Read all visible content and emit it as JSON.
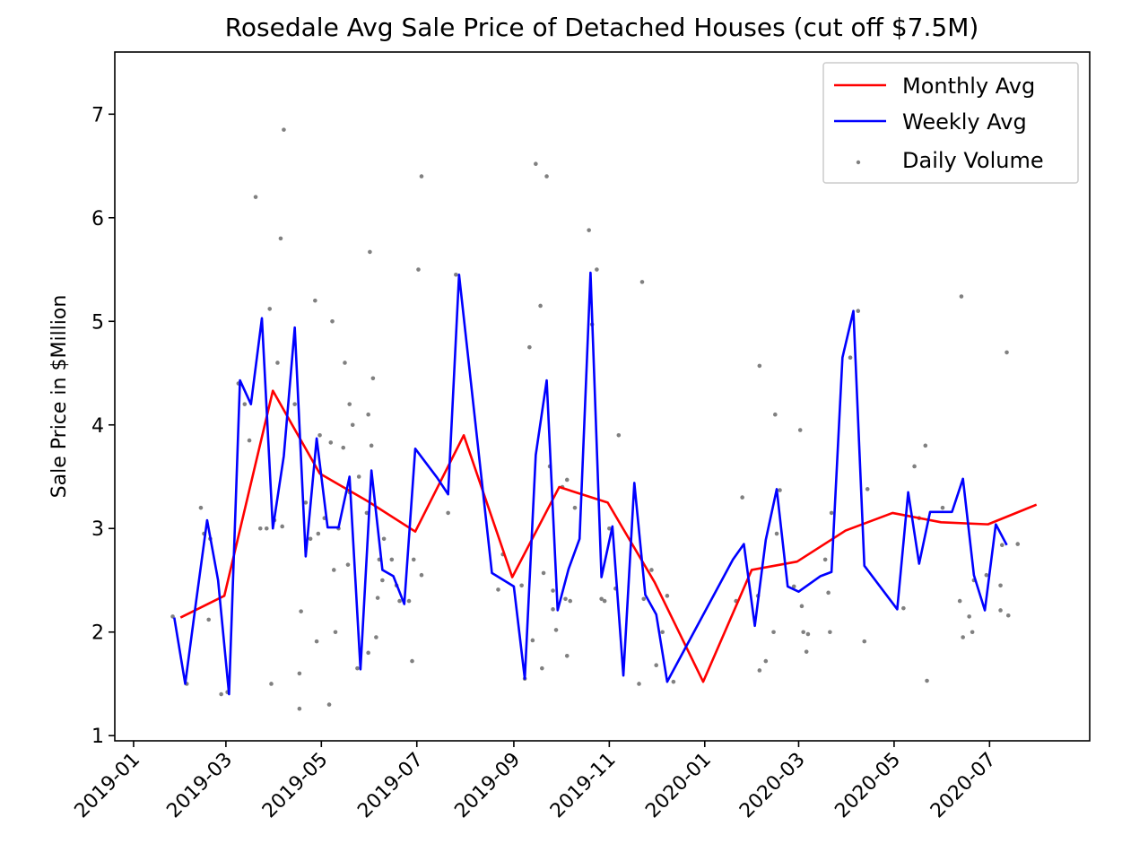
{
  "chart_data": {
    "type": "line",
    "title": "Rosedale Avg Sale Price of Detached Houses (cut off $7.5M)",
    "xlabel": "",
    "ylabel": "Sale Price in $Million",
    "ylim": [
      0.95,
      7.6
    ],
    "xlim": [
      "2018-12-20",
      "2020-09-03"
    ],
    "x_ticks": [
      "2019-01",
      "2019-03",
      "2019-05",
      "2019-07",
      "2019-09",
      "2019-11",
      "2020-01",
      "2020-03",
      "2020-05",
      "2020-07"
    ],
    "y_ticks": [
      1,
      2,
      3,
      4,
      5,
      6,
      7
    ],
    "grid": false,
    "legend_position": "top-right",
    "series": [
      {
        "name": "Monthly Avg",
        "color": "#ff0000",
        "style": "line",
        "x": [
          "2019-01-31",
          "2019-02-28",
          "2019-03-31",
          "2019-04-30",
          "2019-05-31",
          "2019-06-30",
          "2019-07-31",
          "2019-08-31",
          "2019-09-30",
          "2019-10-31",
          "2019-11-30",
          "2019-12-31",
          "2020-01-31",
          "2020-02-29",
          "2020-03-31",
          "2020-04-30",
          "2020-05-31",
          "2020-06-30",
          "2020-07-31"
        ],
        "y": [
          2.14,
          2.35,
          4.33,
          3.53,
          3.26,
          2.97,
          3.9,
          2.53,
          3.4,
          3.25,
          2.48,
          1.52,
          2.6,
          2.68,
          2.98,
          3.15,
          3.06,
          3.04,
          3.23
        ]
      },
      {
        "name": "Weekly Avg",
        "color": "#0000ff",
        "style": "line",
        "x": [
          "2019-01-27",
          "2019-02-03",
          "2019-02-10",
          "2019-02-17",
          "2019-02-24",
          "2019-03-03",
          "2019-03-10",
          "2019-03-17",
          "2019-03-24",
          "2019-03-31",
          "2019-04-07",
          "2019-04-14",
          "2019-04-21",
          "2019-04-28",
          "2019-05-05",
          "2019-05-12",
          "2019-05-19",
          "2019-05-26",
          "2019-06-02",
          "2019-06-09",
          "2019-06-16",
          "2019-06-23",
          "2019-06-30",
          "2019-07-14",
          "2019-07-21",
          "2019-07-28",
          "2019-08-18",
          "2019-09-01",
          "2019-09-08",
          "2019-09-15",
          "2019-09-22",
          "2019-09-29",
          "2019-10-06",
          "2019-10-13",
          "2019-10-20",
          "2019-10-27",
          "2019-11-03",
          "2019-11-10",
          "2019-11-17",
          "2019-11-24",
          "2019-12-01",
          "2019-12-08",
          "2020-01-19",
          "2020-01-26",
          "2020-02-02",
          "2020-02-09",
          "2020-02-16",
          "2020-02-23",
          "2020-03-01",
          "2020-03-15",
          "2020-03-22",
          "2020-03-29",
          "2020-04-05",
          "2020-04-12",
          "2020-05-03",
          "2020-05-10",
          "2020-05-17",
          "2020-05-24",
          "2020-06-07",
          "2020-06-14",
          "2020-06-21",
          "2020-06-28",
          "2020-07-05",
          "2020-07-12"
        ],
        "y": [
          2.14,
          1.5,
          2.3,
          3.08,
          2.5,
          1.4,
          4.43,
          4.2,
          5.03,
          3.0,
          3.7,
          4.94,
          2.73,
          3.87,
          3.01,
          3.01,
          3.5,
          1.64,
          3.56,
          2.6,
          2.54,
          2.27,
          3.77,
          3.49,
          3.33,
          5.45,
          2.57,
          2.44,
          1.55,
          3.71,
          4.43,
          2.21,
          2.61,
          2.9,
          5.47,
          2.53,
          3.02,
          1.58,
          3.44,
          2.36,
          2.17,
          1.52,
          2.7,
          2.85,
          2.06,
          2.89,
          3.38,
          2.44,
          2.39,
          2.54,
          2.58,
          4.65,
          5.1,
          2.64,
          2.22,
          3.35,
          2.66,
          3.16,
          3.16,
          3.48,
          2.55,
          2.21,
          3.04,
          2.84
        ]
      },
      {
        "name": "Daily Volume",
        "color": "#808080",
        "style": "scatter",
        "points": [
          [
            "2019-01-26",
            2.15
          ],
          [
            "2019-02-04",
            1.5
          ],
          [
            "2019-02-13",
            3.2
          ],
          [
            "2019-02-15",
            2.95
          ],
          [
            "2019-02-18",
            2.12
          ],
          [
            "2019-02-19",
            2.9
          ],
          [
            "2019-02-26",
            1.4
          ],
          [
            "2019-03-02",
            1.42
          ],
          [
            "2019-03-09",
            4.4
          ],
          [
            "2019-03-13",
            4.2
          ],
          [
            "2019-03-16",
            3.85
          ],
          [
            "2019-03-20",
            6.2
          ],
          [
            "2019-03-23",
            3.0
          ],
          [
            "2019-03-27",
            3.0
          ],
          [
            "2019-03-29",
            5.12
          ],
          [
            "2019-03-30",
            1.5
          ],
          [
            "2019-04-01",
            3.08
          ],
          [
            "2019-04-03",
            4.6
          ],
          [
            "2019-04-05",
            5.8
          ],
          [
            "2019-04-06",
            3.02
          ],
          [
            "2019-04-07",
            6.85
          ],
          [
            "2019-04-14",
            4.2
          ],
          [
            "2019-04-17",
            1.26
          ],
          [
            "2019-04-17",
            1.6
          ],
          [
            "2019-04-18",
            2.2
          ],
          [
            "2019-04-21",
            3.25
          ],
          [
            "2019-04-24",
            2.9
          ],
          [
            "2019-04-27",
            5.2
          ],
          [
            "2019-04-28",
            1.91
          ],
          [
            "2019-04-29",
            2.95
          ],
          [
            "2019-04-30",
            3.9
          ],
          [
            "2019-05-03",
            3.1
          ],
          [
            "2019-05-06",
            1.3
          ],
          [
            "2019-05-07",
            3.83
          ],
          [
            "2019-05-08",
            5.0
          ],
          [
            "2019-05-09",
            2.6
          ],
          [
            "2019-05-10",
            2.0
          ],
          [
            "2019-05-12",
            3.0
          ],
          [
            "2019-05-15",
            3.78
          ],
          [
            "2019-05-16",
            4.6
          ],
          [
            "2019-05-18",
            2.65
          ],
          [
            "2019-05-19",
            3.35
          ],
          [
            "2019-05-19",
            4.2
          ],
          [
            "2019-05-21",
            4.0
          ],
          [
            "2019-05-24",
            1.65
          ],
          [
            "2019-05-25",
            3.5
          ],
          [
            "2019-05-30",
            3.15
          ],
          [
            "2019-05-31",
            1.8
          ],
          [
            "2019-05-31",
            4.1
          ],
          [
            "2019-06-01",
            5.67
          ],
          [
            "2019-06-02",
            3.8
          ],
          [
            "2019-06-03",
            4.45
          ],
          [
            "2019-06-05",
            1.95
          ],
          [
            "2019-06-06",
            2.33
          ],
          [
            "2019-06-07",
            2.7
          ],
          [
            "2019-06-09",
            2.5
          ],
          [
            "2019-06-10",
            2.9
          ],
          [
            "2019-06-15",
            2.7
          ],
          [
            "2019-06-18",
            2.45
          ],
          [
            "2019-06-20",
            2.3
          ],
          [
            "2019-06-26",
            2.3
          ],
          [
            "2019-06-28",
            1.72
          ],
          [
            "2019-06-29",
            2.7
          ],
          [
            "2019-07-02",
            5.5
          ],
          [
            "2019-07-04",
            6.4
          ],
          [
            "2019-07-04",
            2.55
          ],
          [
            "2019-07-21",
            3.15
          ],
          [
            "2019-07-26",
            5.45
          ],
          [
            "2019-08-22",
            2.41
          ],
          [
            "2019-08-25",
            2.75
          ],
          [
            "2019-09-06",
            2.45
          ],
          [
            "2019-09-08",
            1.55
          ],
          [
            "2019-09-11",
            4.75
          ],
          [
            "2019-09-13",
            1.92
          ],
          [
            "2019-09-15",
            6.52
          ],
          [
            "2019-09-18",
            5.15
          ],
          [
            "2019-09-19",
            1.65
          ],
          [
            "2019-09-20",
            2.57
          ],
          [
            "2019-09-22",
            6.4
          ],
          [
            "2019-09-24",
            3.6
          ],
          [
            "2019-09-26",
            2.4
          ],
          [
            "2019-09-26",
            2.22
          ],
          [
            "2019-09-28",
            2.02
          ],
          [
            "2019-10-02",
            3.4
          ],
          [
            "2019-10-04",
            2.32
          ],
          [
            "2019-10-05",
            1.77
          ],
          [
            "2019-10-05",
            3.47
          ],
          [
            "2019-10-07",
            2.3
          ],
          [
            "2019-10-10",
            3.2
          ],
          [
            "2019-10-19",
            5.88
          ],
          [
            "2019-10-21",
            4.97
          ],
          [
            "2019-10-24",
            5.5
          ],
          [
            "2019-10-27",
            2.32
          ],
          [
            "2019-10-29",
            2.3
          ],
          [
            "2019-11-01",
            3.0
          ],
          [
            "2019-11-05",
            2.42
          ],
          [
            "2019-11-07",
            3.9
          ],
          [
            "2019-11-20",
            1.5
          ],
          [
            "2019-11-22",
            5.38
          ],
          [
            "2019-11-23",
            2.32
          ],
          [
            "2019-11-28",
            2.6
          ],
          [
            "2019-12-01",
            1.68
          ],
          [
            "2019-12-05",
            2.0
          ],
          [
            "2019-12-08",
            2.35
          ],
          [
            "2019-12-12",
            1.52
          ],
          [
            "2020-01-21",
            2.3
          ],
          [
            "2020-01-25",
            3.3
          ],
          [
            "2020-02-04",
            2.35
          ],
          [
            "2020-02-05",
            4.57
          ],
          [
            "2020-02-05",
            1.63
          ],
          [
            "2020-02-09",
            1.72
          ],
          [
            "2020-02-14",
            2.0
          ],
          [
            "2020-02-15",
            4.1
          ],
          [
            "2020-02-16",
            2.95
          ],
          [
            "2020-02-18",
            3.37
          ],
          [
            "2020-02-27",
            2.44
          ],
          [
            "2020-03-02",
            3.95
          ],
          [
            "2020-03-03",
            2.25
          ],
          [
            "2020-03-04",
            2.0
          ],
          [
            "2020-03-06",
            1.81
          ],
          [
            "2020-03-07",
            1.98
          ],
          [
            "2020-03-18",
            2.7
          ],
          [
            "2020-03-20",
            2.38
          ],
          [
            "2020-03-21",
            2.0
          ],
          [
            "2020-03-22",
            3.15
          ],
          [
            "2020-04-03",
            4.65
          ],
          [
            "2020-04-08",
            5.1
          ],
          [
            "2020-04-12",
            1.91
          ],
          [
            "2020-04-14",
            3.38
          ],
          [
            "2020-05-07",
            2.23
          ],
          [
            "2020-05-14",
            3.6
          ],
          [
            "2020-05-17",
            3.1
          ],
          [
            "2020-05-21",
            3.8
          ],
          [
            "2020-05-22",
            1.53
          ],
          [
            "2020-06-01",
            3.2
          ],
          [
            "2020-06-12",
            2.3
          ],
          [
            "2020-06-13",
            5.24
          ],
          [
            "2020-06-14",
            1.95
          ],
          [
            "2020-06-18",
            2.15
          ],
          [
            "2020-06-20",
            2.0
          ],
          [
            "2020-06-21",
            2.5
          ],
          [
            "2020-06-29",
            2.55
          ],
          [
            "2020-07-08",
            2.21
          ],
          [
            "2020-07-08",
            2.45
          ],
          [
            "2020-07-09",
            2.84
          ],
          [
            "2020-07-12",
            4.7
          ],
          [
            "2020-07-13",
            2.16
          ],
          [
            "2020-07-19",
            2.85
          ]
        ]
      }
    ]
  }
}
